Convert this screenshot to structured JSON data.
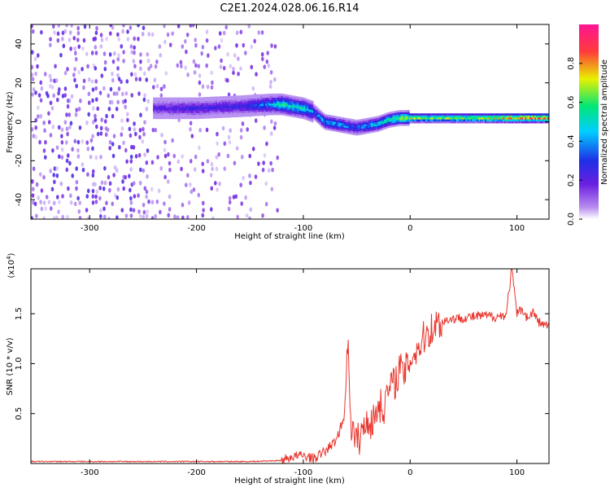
{
  "figure": {
    "title": "C2E1.2024.028.06.16.R14"
  },
  "colors": {
    "spectrogram_purple": "#7a1fe0",
    "snr_line": "#e8342c",
    "frame": "#000000",
    "colorbar_stops": [
      "#8a2be2",
      "#1f1fe6",
      "#00d4ff",
      "#00e676",
      "#f5e400",
      "#ff3b3b",
      "#ff1493"
    ]
  },
  "chart_data": [
    {
      "type": "heatmap",
      "xlabel": "Height of straight line (km)",
      "ylabel": "Frequency (Hz)",
      "xlim": [
        -355,
        130
      ],
      "ylim": [
        -50,
        50
      ],
      "xticks": [
        -300,
        -200,
        -100,
        0,
        100
      ],
      "yticks": [
        -40,
        -20,
        0,
        20,
        40
      ],
      "colorbar": {
        "label": "Normalized spectral amplitude",
        "range": [
          0,
          1
        ],
        "ticks": [
          "0.0",
          "0.2",
          "0.4",
          "0.6",
          "0.8"
        ],
        "tick_values": [
          0.0,
          0.2,
          0.4,
          0.6,
          0.8
        ]
      },
      "ridge": {
        "x": [
          -240,
          -200,
          -160,
          -130,
          -120,
          -100,
          -90,
          -80,
          -70,
          -60,
          -50,
          -40,
          -30,
          -20,
          -10,
          0,
          20,
          60,
          100,
          130
        ],
        "frequency_hz": [
          7,
          7,
          8,
          9,
          9,
          7,
          5,
          0,
          -1,
          -2,
          -3,
          -2,
          -1,
          1,
          2,
          2,
          2,
          2,
          2,
          2
        ],
        "amplitude": [
          0.25,
          0.3,
          0.3,
          0.45,
          0.6,
          0.55,
          0.45,
          0.5,
          0.5,
          0.45,
          0.4,
          0.5,
          0.55,
          0.6,
          0.7,
          0.75,
          0.7,
          0.75,
          0.9,
          0.95
        ]
      }
    },
    {
      "type": "line",
      "xlabel": "Height of straight line (km)",
      "ylabel": "SNR (10 * v/v)",
      "y_scale_label": "(x10",
      "y_scale_exponent": "4",
      "y_scale_suffix": ")",
      "xlim": [
        -355,
        130
      ],
      "ylim": [
        0,
        1.95
      ],
      "xticks": [
        -300,
        -200,
        -100,
        0,
        100
      ],
      "yticks": [
        0.5,
        1.0,
        1.5
      ],
      "ytick_labels": [
        "0.5",
        "1.0",
        "1.5"
      ],
      "series": [
        {
          "x": [
            -355,
            -300,
            -250,
            -200,
            -150,
            -120,
            -110,
            -100,
            -90,
            -80,
            -70,
            -62,
            -58,
            -55,
            -50,
            -45,
            -40,
            -35,
            -30,
            -25,
            -20,
            -15,
            -10,
            -5,
            0,
            5,
            10,
            15,
            20,
            25,
            30,
            35,
            40,
            50,
            60,
            70,
            80,
            90,
            95,
            100,
            105,
            110,
            115,
            120,
            125,
            130
          ],
          "values": [
            0.02,
            0.02,
            0.02,
            0.02,
            0.02,
            0.03,
            0.07,
            0.08,
            0.05,
            0.12,
            0.22,
            0.45,
            1.2,
            0.35,
            0.22,
            0.3,
            0.45,
            0.4,
            0.6,
            0.55,
            0.75,
            0.8,
            0.95,
            0.9,
            1.05,
            1.12,
            1.2,
            1.3,
            1.35,
            1.4,
            1.42,
            1.44,
            1.45,
            1.46,
            1.47,
            1.48,
            1.47,
            1.49,
            1.95,
            1.5,
            1.55,
            1.45,
            1.52,
            1.42,
            1.39,
            1.38
          ]
        }
      ]
    }
  ]
}
